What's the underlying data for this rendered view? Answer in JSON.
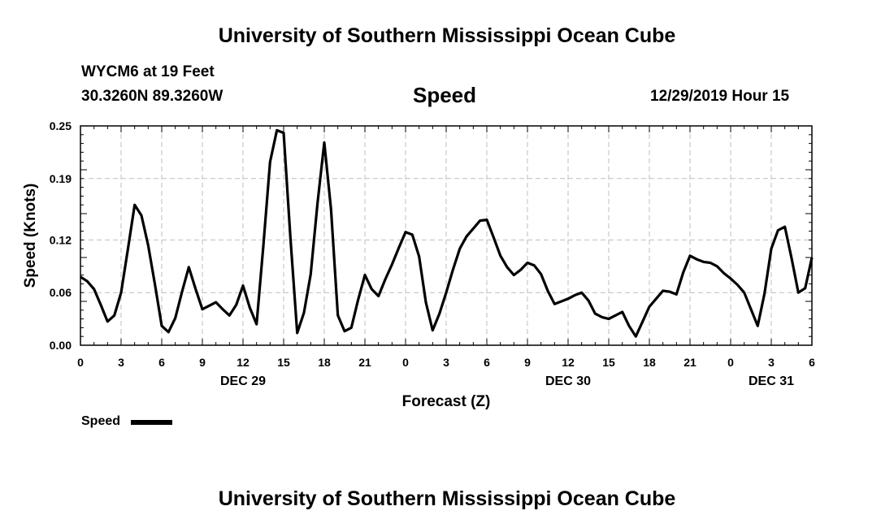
{
  "header": {
    "title": "University of Southern Mississippi Ocean Cube",
    "station": "WYCM6 at 19 Feet",
    "location": "30.3260N 89.3260W",
    "variable": "Speed",
    "issued": "12/29/2019 Hour 15"
  },
  "footer": {
    "title": "University of Southern Mississippi Ocean Cube"
  },
  "legend": {
    "label": "Speed",
    "color": "#000000"
  },
  "chart_data": {
    "type": "line",
    "title": "Speed",
    "xlabel": "Forecast (Z)",
    "ylabel": "Speed (Knots)",
    "xlim": [
      0,
      54
    ],
    "ylim": [
      0.0,
      0.25
    ],
    "grid": true,
    "yticks": [
      0.0,
      0.06,
      0.12,
      0.19,
      0.25
    ],
    "ytick_labels": [
      "0.00",
      "0.06",
      "0.12",
      "0.19",
      "0.25"
    ],
    "xticks": [
      0,
      3,
      6,
      9,
      12,
      15,
      18,
      21,
      24,
      27,
      30,
      33,
      36,
      39,
      42,
      45,
      48,
      51,
      54
    ],
    "xtick_labels": [
      "0",
      "3",
      "6",
      "9",
      "12",
      "15",
      "18",
      "21",
      "0",
      "3",
      "6",
      "9",
      "12",
      "15",
      "18",
      "21",
      "0",
      "3",
      "6"
    ],
    "date_labels": [
      {
        "label": "DEC 29",
        "x": 12
      },
      {
        "label": "DEC 30",
        "x": 36
      },
      {
        "label": "DEC 31",
        "x": 51
      }
    ],
    "series": [
      {
        "name": "Speed",
        "color": "#000000",
        "x": [
          0,
          0.5,
          1,
          1.5,
          2,
          2.5,
          3,
          3.5,
          4,
          4.5,
          5,
          5.5,
          6,
          6.5,
          7,
          7.5,
          8,
          8.5,
          9,
          9.5,
          10,
          10.5,
          11,
          11.5,
          12,
          12.5,
          13,
          13.5,
          14,
          14.5,
          15,
          15.5,
          16,
          16.5,
          17,
          17.5,
          18,
          18.5,
          19,
          19.5,
          20,
          20.5,
          21,
          21.5,
          22,
          22.5,
          23,
          23.5,
          24,
          24.5,
          25,
          25.5,
          26,
          26.5,
          27,
          27.5,
          28,
          28.5,
          29,
          29.5,
          30,
          30.5,
          31,
          31.5,
          32,
          32.5,
          33,
          33.5,
          34,
          34.5,
          35,
          35.5,
          36,
          36.5,
          37,
          37.5,
          38,
          38.5,
          39,
          39.5,
          40,
          40.5,
          41,
          41.5,
          42,
          42.5,
          43,
          43.5,
          44,
          44.5,
          45,
          45.5,
          46,
          46.5,
          47,
          47.5,
          48,
          48.5,
          49,
          49.5,
          50,
          50.5,
          51,
          51.5,
          52,
          52.5,
          53,
          53.5,
          54
        ],
        "values": [
          0.078,
          0.073,
          0.064,
          0.046,
          0.027,
          0.034,
          0.06,
          0.109,
          0.16,
          0.148,
          0.114,
          0.069,
          0.022,
          0.015,
          0.031,
          0.061,
          0.089,
          0.064,
          0.041,
          0.045,
          0.049,
          0.041,
          0.034,
          0.046,
          0.068,
          0.043,
          0.024,
          0.113,
          0.209,
          0.245,
          0.242,
          0.123,
          0.014,
          0.037,
          0.081,
          0.162,
          0.231,
          0.155,
          0.034,
          0.016,
          0.02,
          0.052,
          0.08,
          0.064,
          0.056,
          0.075,
          0.092,
          0.111,
          0.129,
          0.126,
          0.101,
          0.049,
          0.017,
          0.036,
          0.06,
          0.086,
          0.11,
          0.124,
          0.133,
          0.142,
          0.143,
          0.123,
          0.102,
          0.089,
          0.08,
          0.086,
          0.094,
          0.091,
          0.081,
          0.062,
          0.047,
          0.05,
          0.053,
          0.057,
          0.06,
          0.051,
          0.036,
          0.032,
          0.03,
          0.034,
          0.038,
          0.022,
          0.01,
          0.027,
          0.044,
          0.053,
          0.062,
          0.061,
          0.058,
          0.083,
          0.102,
          0.098,
          0.095,
          0.094,
          0.09,
          0.082,
          0.076,
          0.069,
          0.06,
          0.041,
          0.022,
          0.059,
          0.11,
          0.131,
          0.135,
          0.099,
          0.06,
          0.065,
          0.1
        ]
      }
    ]
  }
}
